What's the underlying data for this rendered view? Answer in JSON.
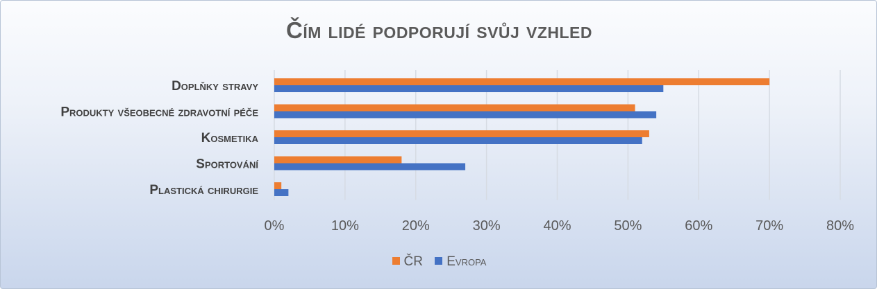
{
  "chart_data": {
    "type": "bar",
    "orientation": "horizontal",
    "title": "Čím lidé podporují svůj vzhled",
    "categories": [
      "Doplňky stravy",
      "Produkty všeobecné zdravotní péče",
      "Kosmetika",
      "Sportování",
      "Plastická chirurgie"
    ],
    "series": [
      {
        "name": "ČR",
        "color": "#ED7D31",
        "values": [
          0.7,
          0.51,
          0.53,
          0.18,
          0.01
        ]
      },
      {
        "name": "Evropa",
        "color": "#4472C4",
        "values": [
          0.55,
          0.54,
          0.52,
          0.27,
          0.02
        ]
      }
    ],
    "xlim": [
      0,
      0.8
    ],
    "xticks": [
      "0%",
      "10%",
      "20%",
      "30%",
      "40%",
      "50%",
      "60%",
      "70%",
      "80%"
    ],
    "grid": true,
    "legend_position": "bottom"
  }
}
